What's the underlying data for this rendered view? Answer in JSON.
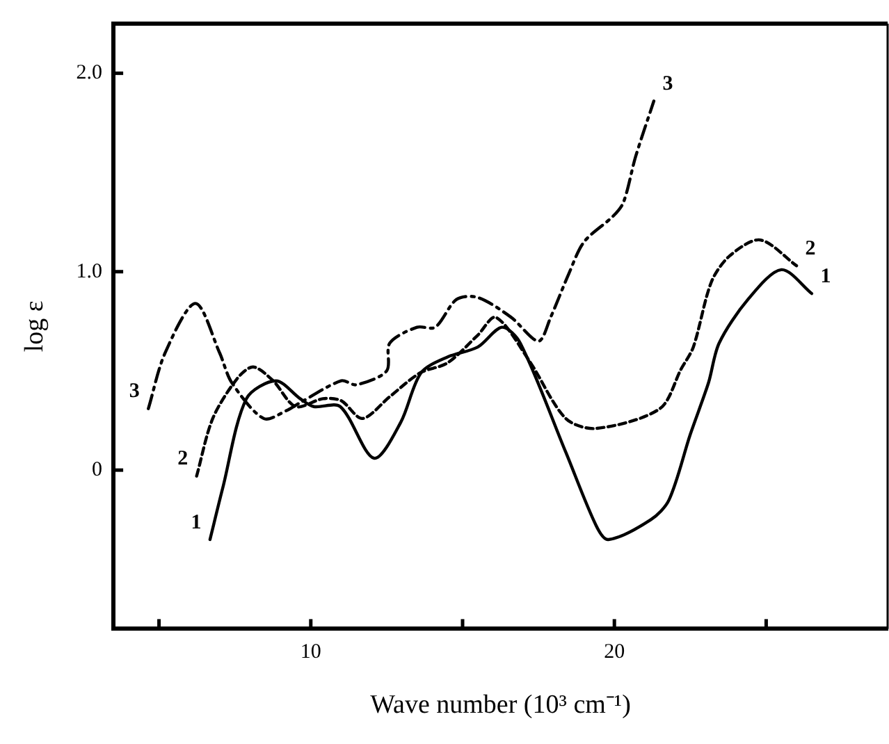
{
  "chart_data": {
    "type": "line",
    "xlabel": "Wave number (10³ cm⁻¹)",
    "ylabel": "log ε",
    "xlim": [
      3.5,
      29
    ],
    "ylim": [
      -0.8,
      2.25
    ],
    "xticks": [
      {
        "value": 5,
        "label": null
      },
      10,
      {
        "value": 15,
        "label": null
      },
      20,
      {
        "value": 25,
        "label": null
      }
    ],
    "yticks": [
      {
        "value": 0,
        "label": "0"
      },
      {
        "value": 1,
        "label": "1.0"
      },
      {
        "value": 2,
        "label": "2.0"
      }
    ],
    "grid": false,
    "legend": false,
    "marker": "none",
    "series": [
      {
        "name": "1",
        "color": "#000000",
        "line_style": "solid",
        "x": [
          6.68,
          7.1,
          7.88,
          8.85,
          9.65,
          10.1,
          10.97,
          12.08,
          12.96,
          13.63,
          14.5,
          15.5,
          16.3,
          16.9,
          18.4,
          19.4,
          19.8,
          21.2,
          21.8,
          22.5,
          23.1,
          23.45,
          24.4,
          25.5,
          26.5
        ],
        "values": [
          -0.35,
          -0.09,
          0.36,
          0.45,
          0.36,
          0.32,
          0.32,
          0.06,
          0.24,
          0.49,
          0.57,
          0.62,
          0.72,
          0.64,
          0.09,
          -0.28,
          -0.35,
          -0.25,
          -0.15,
          0.18,
          0.44,
          0.64,
          0.86,
          1.01,
          0.89
        ]
      },
      {
        "name": "2",
        "color": "#000000",
        "line_style": "dotted",
        "x": [
          6.24,
          6.77,
          7.57,
          8.1,
          8.76,
          9.5,
          10.4,
          11.0,
          11.7,
          12.6,
          13.6,
          14.5,
          15.5,
          16.1,
          17.2,
          18.4,
          19.4,
          21.5,
          22.2,
          22.6,
          23.2,
          23.8,
          24.8,
          26.0
        ],
        "values": [
          -0.03,
          0.26,
          0.46,
          0.52,
          0.45,
          0.32,
          0.36,
          0.35,
          0.26,
          0.37,
          0.49,
          0.54,
          0.68,
          0.77,
          0.55,
          0.26,
          0.21,
          0.31,
          0.51,
          0.62,
          0.95,
          1.08,
          1.16,
          1.03
        ]
      },
      {
        "name": "3",
        "color": "#000000",
        "line_style": "dashed",
        "x": [
          4.65,
          5.2,
          6.2,
          7.0,
          7.4,
          8.45,
          9.2,
          9.65,
          11.0,
          11.5,
          12.5,
          12.6,
          13.5,
          14.1,
          14.8,
          15.5,
          16.6,
          17.5,
          17.9,
          18.5,
          19.0,
          19.96,
          20.3,
          20.7,
          21.3
        ],
        "values": [
          0.31,
          0.59,
          0.84,
          0.59,
          0.44,
          0.26,
          0.3,
          0.34,
          0.45,
          0.43,
          0.5,
          0.64,
          0.72,
          0.72,
          0.86,
          0.87,
          0.77,
          0.65,
          0.77,
          0.99,
          1.15,
          1.28,
          1.35,
          1.58,
          1.86
        ]
      }
    ]
  }
}
